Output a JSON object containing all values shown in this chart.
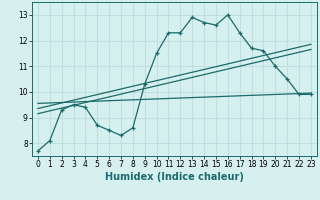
{
  "title": "",
  "xlabel": "Humidex (Indice chaleur)",
  "bg_color": "#d6f0f0",
  "grid_color": "#c0e0e0",
  "line_color": "#1a6b6b",
  "xlim": [
    -0.5,
    23.5
  ],
  "ylim": [
    7.5,
    13.5
  ],
  "xticks": [
    0,
    1,
    2,
    3,
    4,
    5,
    6,
    7,
    8,
    9,
    10,
    11,
    12,
    13,
    14,
    15,
    16,
    17,
    18,
    19,
    20,
    21,
    22,
    23
  ],
  "yticks": [
    8,
    9,
    10,
    11,
    12,
    13
  ],
  "humidex_x": [
    0,
    1,
    2,
    3,
    4,
    5,
    6,
    7,
    8,
    9,
    10,
    11,
    12,
    13,
    14,
    15,
    16,
    17,
    18,
    19,
    20,
    21,
    22,
    23
  ],
  "humidex_y": [
    7.7,
    8.1,
    9.3,
    9.5,
    9.4,
    8.7,
    8.5,
    8.3,
    8.6,
    10.3,
    11.5,
    12.3,
    12.3,
    12.9,
    12.7,
    12.6,
    13.0,
    12.3,
    11.7,
    11.6,
    11.0,
    10.5,
    9.9,
    9.9
  ],
  "line1_x": [
    0,
    23
  ],
  "line1_y": [
    9.35,
    11.85
  ],
  "line2_x": [
    0,
    23
  ],
  "line2_y": [
    9.15,
    11.65
  ],
  "line3_x": [
    0,
    23
  ],
  "line3_y": [
    9.55,
    9.95
  ],
  "xlabel_fontsize": 7,
  "tick_fontsize": 5.5
}
